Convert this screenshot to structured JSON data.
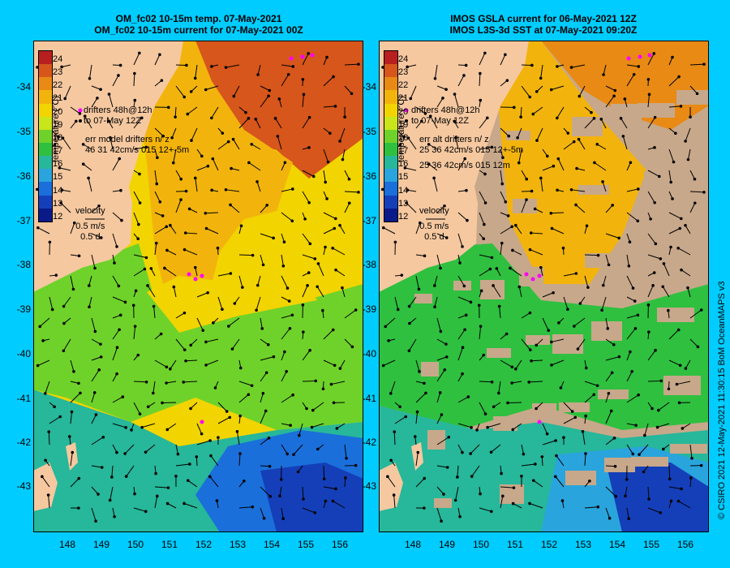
{
  "left_panel": {
    "title_line1": "OM_fc02 10-15m temp. 07-May-2021",
    "title_line2": "OM_fc02 10-15m current for 07-May-2021 00Z",
    "colorbar": {
      "title": "temperature (°C)",
      "ticks": [
        "24",
        "23",
        "22",
        "21",
        "20",
        "19",
        "18",
        "17",
        "16",
        "15",
        "14",
        "13",
        "12"
      ],
      "colors": [
        "#b81f1f",
        "#d6561b",
        "#e88a14",
        "#f2b40c",
        "#f2d400",
        "#c8e61a",
        "#6fd22a",
        "#2fc040",
        "#27b79a",
        "#2aa4dd",
        "#1a6fdb",
        "#143fb8",
        "#0a1a88"
      ]
    },
    "legend": {
      "drifters_line1": "drifters 48h@12h",
      "drifters_line2": "to 07-May 12Z",
      "err_title": "err model drifters n/ z",
      "err_values": "46 31 42cm/s 015 12+-5m",
      "err_values2": "",
      "velocity_label": "velocity",
      "velocity_scale": "0.5 m/s",
      "velocity_time": "0.5 d"
    }
  },
  "right_panel": {
    "title_line1": "IMOS GSLA current for 06-May-2021 12Z",
    "title_line2": "IMOS L3S-3d SST at 07-May-2021 09:20Z",
    "colorbar": {
      "title": "temperature (°C)",
      "ticks": [
        "24",
        "23",
        "22",
        "21",
        "20",
        "19",
        "18",
        "17",
        "16",
        "15",
        "14",
        "13",
        "12"
      ],
      "colors": [
        "#b81f1f",
        "#d6561b",
        "#e88a14",
        "#f2b40c",
        "#f2d400",
        "#c8e61a",
        "#6fd22a",
        "#2fc040",
        "#27b79a",
        "#2aa4dd",
        "#1a6fdb",
        "#143fb8",
        "#0a1a88"
      ]
    },
    "legend": {
      "drifters_line1": "drifters 48h@12h",
      "drifters_line2": "to 07-May 12Z",
      "err_title": "err alt drifters n/ z",
      "err_values": "25 36 42cm/s 015 12+-5m",
      "err_values2": "25 36 42cm/s 015 12m",
      "velocity_label": "velocity",
      "velocity_scale": "0.5 m/s",
      "velocity_time": "0.5 d"
    }
  },
  "axes": {
    "lat_ticks": [
      "-34",
      "-35",
      "-36",
      "-37",
      "-38",
      "-39",
      "-40",
      "-41",
      "-42",
      "-43"
    ],
    "lon_ticks": [
      "148",
      "149",
      "150",
      "151",
      "152",
      "153",
      "154",
      "155",
      "156"
    ]
  },
  "credit": "© CSIRO 2021  12-May-2021 11:30:15 BoM OceanMAPS v3",
  "colors": {
    "background": "#00ccff",
    "land": "#f5c8a0",
    "cloud": "#c8a88a",
    "drifter": "#ff00ff"
  }
}
